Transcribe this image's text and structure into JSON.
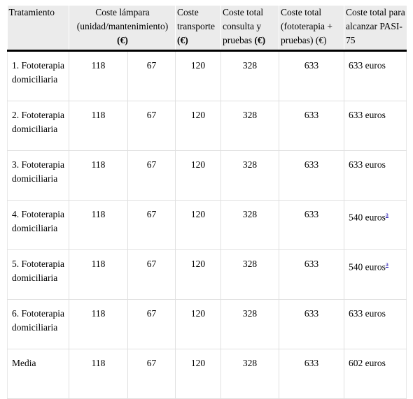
{
  "headers": {
    "h0": "Tratamiento",
    "h1": "Coste lámpara (unidad/mantenimiento)",
    "h1_unit": "(€)",
    "h2": "Coste transporte",
    "h2_unit": "(€)",
    "h3": "Coste total consulta y pruebas",
    "h3_unit": "(€)",
    "h4": "Coste total (fototerapia + pruebas) (€)",
    "h5": "Coste total para alcanzar PASI-75"
  },
  "rows": [
    {
      "name": "1. Fototerapia domiciliaria",
      "lamp_unit": "118",
      "lamp_maint": "67",
      "transport": "120",
      "consult": "328",
      "total": "633",
      "pasi": "633 euros",
      "note": ""
    },
    {
      "name": "2. Fototerapia domiciliaria",
      "lamp_unit": "118",
      "lamp_maint": "67",
      "transport": "120",
      "consult": "328",
      "total": "633",
      "pasi": "633 euros",
      "note": ""
    },
    {
      "name": "3. Fototerapia domiciliaria",
      "lamp_unit": "118",
      "lamp_maint": "67",
      "transport": "120",
      "consult": "328",
      "total": "633",
      "pasi": "633 euros",
      "note": ""
    },
    {
      "name": "4. Fototerapia domiciliaria",
      "lamp_unit": "118",
      "lamp_maint": "67",
      "transport": "120",
      "consult": "328",
      "total": "633",
      "pasi": "540 euros",
      "note": "a"
    },
    {
      "name": "5. Fototerapia domiciliaria",
      "lamp_unit": "118",
      "lamp_maint": "67",
      "transport": "120",
      "consult": "328",
      "total": "633",
      "pasi": "540 euros",
      "note": "a"
    },
    {
      "name": "6. Fototerapia domiciliaria",
      "lamp_unit": "118",
      "lamp_maint": "67",
      "transport": "120",
      "consult": "328",
      "total": "633",
      "pasi": "633 euros",
      "note": ""
    },
    {
      "name": "Media",
      "lamp_unit": "118",
      "lamp_maint": "67",
      "transport": "120",
      "consult": "328",
      "total": "633",
      "pasi": "602 euros",
      "note": ""
    }
  ]
}
